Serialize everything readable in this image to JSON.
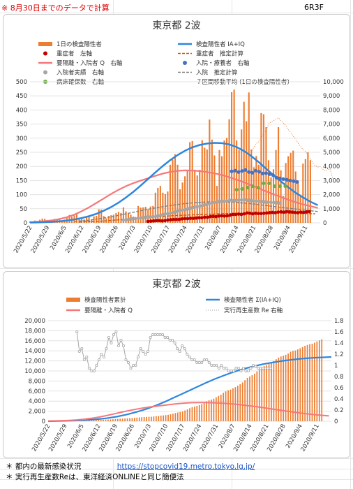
{
  "header": {
    "note": "※ 8月30日までのデータで計算",
    "code": "6R3F"
  },
  "footer": {
    "line1_label": "＊ 都内の最新感染状況",
    "link": "https://stopcovid19.metro.tokyo.lg.jp/",
    "line2": "＊ 実行再生産数Reは、東洋経済ONLINEと同じ簡便法"
  },
  "chart_data": [
    {
      "type": "bar",
      "title": "東京都 2波",
      "x_tick_labels": [
        "2020/5/22",
        "2020/5/29",
        "2020/6/5",
        "2020/6/12",
        "2020/6/19",
        "2020/6/26",
        "2020/7/3",
        "2020/7/10",
        "2020/7/17",
        "2020/7/24",
        "2020/7/31",
        "2020/8/7",
        "2020/8/14",
        "2020/8/21",
        "2020/8/28",
        "2020/9/4",
        "2020/9/11"
      ],
      "y_left_ticks": [
        0,
        50,
        100,
        150,
        200,
        250,
        300,
        350,
        400,
        450,
        500
      ],
      "y_right_ticks": [
        "0",
        "1,000",
        "2,000",
        "3,000",
        "4,000",
        "5,000",
        "6,000",
        "7,000",
        "8,000",
        "9,000",
        "10,000"
      ],
      "ylim_left": [
        0,
        500
      ],
      "ylim_right": [
        0,
        10000
      ],
      "legend": [
        {
          "label": "1日の検査陽性者",
          "color": "#ed7d31",
          "kind": "bar"
        },
        {
          "label": "検査陽性者 IA+IQ",
          "color": "#2e86de",
          "kind": "line"
        },
        {
          "label": "重症者　左軸",
          "color": "#c00000",
          "kind": "dot"
        },
        {
          "label": "重症者　推定計算",
          "color": "#c55a11",
          "kind": "dash"
        },
        {
          "label": "要隔離・入院者 Q　右軸",
          "color": "#f4787a",
          "kind": "line"
        },
        {
          "label": "入院・療養者　右軸",
          "color": "#4472c4",
          "kind": "dot"
        },
        {
          "label": "入院者実績　右軸",
          "color": "#a6a6a6",
          "kind": "dot"
        },
        {
          "label": "入院　推定計算",
          "color": "#7f7f7f",
          "kind": "dash"
        },
        {
          "label": "病床確保数　右軸",
          "color": "#70ad47",
          "kind": "dot"
        },
        {
          "label": "７区間移動平均 (1日の検査陽性者)",
          "color": "#ed7d31",
          "kind": "dot-line"
        }
      ],
      "daily_positive": [
        5,
        2,
        8,
        3,
        11,
        15,
        14,
        10,
        5,
        3,
        14,
        10,
        11,
        8,
        12,
        20,
        28,
        22,
        26,
        34,
        13,
        14,
        12,
        18,
        22,
        12,
        23,
        25,
        48,
        47,
        24,
        16,
        24,
        27,
        29,
        35,
        39,
        35,
        55,
        41,
        35,
        29,
        22,
        14,
        60,
        54,
        55,
        57,
        48,
        58,
        60,
        107,
        124,
        131,
        107,
        102,
        111,
        206,
        224,
        243,
        206,
        119,
        143,
        165,
        186,
        286,
        290,
        188,
        168,
        188,
        293,
        266,
        260,
        366,
        295,
        239,
        131,
        258,
        236,
        292,
        301,
        367,
        463,
        472,
        292,
        258,
        331,
        429,
        360,
        462,
        260,
        197,
        237,
        206,
        389,
        385,
        339,
        222,
        161,
        190,
        258,
        339,
        186,
        95,
        212,
        236,
        248,
        256,
        182,
        148,
        95,
        210,
        226,
        250,
        222
      ],
      "moving_average_7day": [
        250,
        268,
        281,
        287,
        300,
        317,
        327,
        349,
        358,
        362,
        368,
        372,
        362,
        354,
        345,
        331,
        320,
        308,
        296,
        282,
        270,
        260,
        253,
        238,
        227,
        212,
        203,
        197
      ],
      "moving_average_start_index": 90,
      "moving_average_extension": [
        200,
        190,
        185,
        188,
        192,
        160
      ],
      "model_positive_IA_IQ": [
        20,
        30,
        50,
        75,
        110,
        160,
        240,
        340,
        470,
        640,
        860,
        1120,
        1430,
        1790,
        2200,
        2640,
        3110,
        3580,
        4030,
        4440,
        4800,
        5110,
        5350,
        5520,
        5620,
        5670,
        5650,
        5560,
        5370,
        5090,
        4730,
        4300,
        3840,
        3380,
        2940,
        2520,
        2140,
        1800,
        1500,
        1250
      ],
      "model_Q_isolated_inpatients": [
        50,
        80,
        120,
        180,
        270,
        400,
        580,
        820,
        1100,
        1410,
        1730,
        2050,
        2340,
        2600,
        2810,
        2990,
        3160,
        3330,
        3490,
        3610,
        3690,
        3720,
        3710,
        3670,
        3600,
        3510,
        3390,
        3240,
        3060,
        2870,
        2660,
        2450,
        2240,
        2030,
        1830,
        1640,
        1470,
        1310,
        1180,
        1060
      ],
      "model_daily_sample_step_days": 3,
      "severe_patients_left_axis": [
        5,
        6,
        7,
        8,
        8,
        7,
        8,
        10,
        11,
        12,
        12,
        12,
        14,
        15,
        15,
        16,
        16,
        17,
        18,
        18,
        20,
        20,
        22,
        23,
        22,
        24,
        25,
        24,
        25,
        27,
        30,
        30,
        31,
        30,
        32,
        35,
        34,
        32,
        34,
        33,
        33,
        34,
        35,
        36,
        37,
        36,
        38,
        39,
        38,
        40,
        39,
        38,
        37,
        36,
        38,
        37,
        39,
        40
      ],
      "severe_estimate_left_axis": [
        3,
        4,
        5,
        6,
        8,
        10,
        12,
        14,
        16,
        18,
        20,
        22,
        24,
        26,
        27,
        28,
        29,
        30,
        31,
        32,
        33,
        33,
        34,
        34,
        35,
        35,
        35,
        35,
        34,
        34,
        33,
        33,
        32
      ],
      "inpatients_actual_right": [
        200,
        220,
        250,
        280,
        300,
        330,
        360,
        380,
        400,
        420,
        440,
        470,
        500,
        550,
        600,
        650,
        700,
        750,
        800,
        850,
        900,
        950,
        1000,
        1050,
        1100,
        1150,
        1200,
        1250,
        1300,
        1350,
        1400,
        1450,
        1500,
        1500,
        1520,
        1550,
        1600,
        1560,
        1580,
        1600,
        1620,
        1640,
        1600,
        1580,
        1560,
        1540,
        1520,
        1500,
        1480,
        1460,
        1450,
        1430,
        1420,
        1400
      ],
      "inpatients_estimate_right": [
        100,
        140,
        190,
        260,
        340,
        430,
        530,
        640,
        750,
        860,
        960,
        1060,
        1150,
        1230,
        1300,
        1360,
        1410,
        1450,
        1480,
        1490,
        1490,
        1470,
        1440,
        1400,
        1350,
        1290,
        1230,
        1160,
        1100,
        1040,
        980,
        920,
        860,
        800
      ],
      "hospitalized_and_recuperating_right": [
        3650,
        3700,
        3600,
        3680,
        3750,
        3600,
        3550,
        3700,
        3620,
        3500,
        3520,
        3450,
        3380,
        3200,
        3150,
        3100,
        3050,
        3000,
        2950,
        2900
      ],
      "secured_beds_right": [
        2350,
        2400,
        2500,
        2600,
        2500,
        2800,
        2800,
        2600,
        2600,
        2600
      ]
    },
    {
      "type": "area",
      "title": "東京都 2波",
      "x_tick_labels": [
        "2020/5/22",
        "2020/5/29",
        "2020/6/5",
        "2020/6/12",
        "2020/6/19",
        "2020/6/26",
        "2020/7/3",
        "2020/7/10",
        "2020/7/17",
        "2020/7/24",
        "2020/7/31",
        "2020/8/7",
        "2020/8/14",
        "2020/8/21",
        "2020/8/28",
        "2020/9/4",
        "2020/9/11"
      ],
      "y_left_ticks": [
        "0",
        "2,000",
        "4,000",
        "6,000",
        "8,000",
        "10,000",
        "12,000",
        "14,000",
        "16,000",
        "18,000",
        "20,000"
      ],
      "y_right_ticks": [
        "0",
        "0.2",
        "0.4",
        "0.6",
        "0.8",
        "1",
        "1.2",
        "1.4",
        "1.6",
        "1.8"
      ],
      "ylim_left": [
        0,
        20000
      ],
      "ylim_right": [
        0,
        1.8
      ],
      "legend": [
        {
          "label": "検査陽性者累計",
          "color": "#ed7d31",
          "kind": "bar"
        },
        {
          "label": "検査陽性者 Σ(IA+IQ)",
          "color": "#2e86de",
          "kind": "line"
        },
        {
          "label": "要隔離・入院者 Q",
          "color": "#f4787a",
          "kind": "line"
        },
        {
          "label": "実行再生産数 Re 右軸",
          "color": "#a6a6a6",
          "kind": "dot-line"
        }
      ],
      "cumulative_positive_last": 16300,
      "model_cumulative": [
        5000,
        5050,
        5100,
        5150,
        5250,
        5400,
        5600,
        5900,
        6300,
        6800,
        7400,
        8100,
        8900,
        9800,
        10700,
        11600,
        12500,
        13350,
        14100,
        14800,
        15400,
        15900,
        16350,
        16700,
        17000,
        17250,
        17450,
        17600,
        17700,
        17780
      ],
      "model_Q": [
        50,
        80,
        120,
        180,
        270,
        400,
        580,
        820,
        1100,
        1410,
        1730,
        2050,
        2340,
        2600,
        2810,
        2990,
        3160,
        3330,
        3490,
        3610,
        3690,
        3720,
        3710,
        3670,
        3600,
        3510,
        3390,
        3240,
        3060,
        2870,
        2660,
        2450,
        2240,
        2030,
        1830,
        1640,
        1470,
        1310,
        1180,
        1060
      ],
      "effective_reproduction_number_Re": [
        1.6,
        1.25,
        1.3,
        1.1,
        1.15,
        0.95,
        0.9,
        0.9,
        1.0,
        1.1,
        1.2,
        1.15,
        1.3,
        1.5,
        1.4,
        1.55,
        1.6,
        1.35,
        1.45,
        1.35,
        1.1,
        1.05,
        0.95,
        1.0,
        1.0,
        1.15,
        1.3,
        1.25,
        1.2,
        1.25,
        1.5,
        1.55,
        1.55,
        1.55,
        1.55,
        1.55,
        1.5,
        1.5,
        1.45,
        1.45,
        1.4,
        1.3,
        1.25,
        1.35,
        1.3,
        1.2,
        1.15,
        1.1,
        1.1,
        1.05,
        1.05,
        1.05,
        1.1,
        1.1,
        1.05,
        1.0,
        1.0,
        1.0,
        0.95,
        1.0,
        0.95,
        0.95,
        0.9,
        0.9,
        0.9,
        0.95,
        0.95,
        0.9,
        0.95,
        0.9,
        0.9,
        0.95,
        1.0,
        0.98,
        0.95,
        0.95,
        0.95,
        0.95,
        0.95,
        0.95
      ]
    }
  ]
}
